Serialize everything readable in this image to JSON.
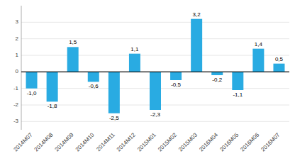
{
  "chart_data": {
    "type": "bar",
    "categories": [
      "2014M07",
      "2014M08",
      "2014M09",
      "2014M10",
      "2014M11",
      "2014M12",
      "2015M01",
      "2015M02",
      "2015M03",
      "2016M04",
      "2016M05",
      "2016M06",
      "2016M07"
    ],
    "values": [
      -1.0,
      -1.8,
      1.5,
      -0.6,
      -2.5,
      1.1,
      -2.3,
      -0.5,
      3.2,
      -0.2,
      -1.1,
      1.4,
      0.5
    ],
    "value_labels": [
      "-1,0",
      "-1,8",
      "1,5",
      "-0,6",
      "-2,5",
      "1,1",
      "-2,3",
      "-0,5",
      "3,2",
      "-0,2",
      "-1,1",
      "1,4",
      "0,5"
    ],
    "data_labels": true,
    "color": "#29abe2",
    "ylim": [
      -3.5,
      4.0
    ],
    "yticks": [
      -3,
      -2,
      -1,
      0,
      1,
      2,
      3
    ],
    "grid": true
  }
}
